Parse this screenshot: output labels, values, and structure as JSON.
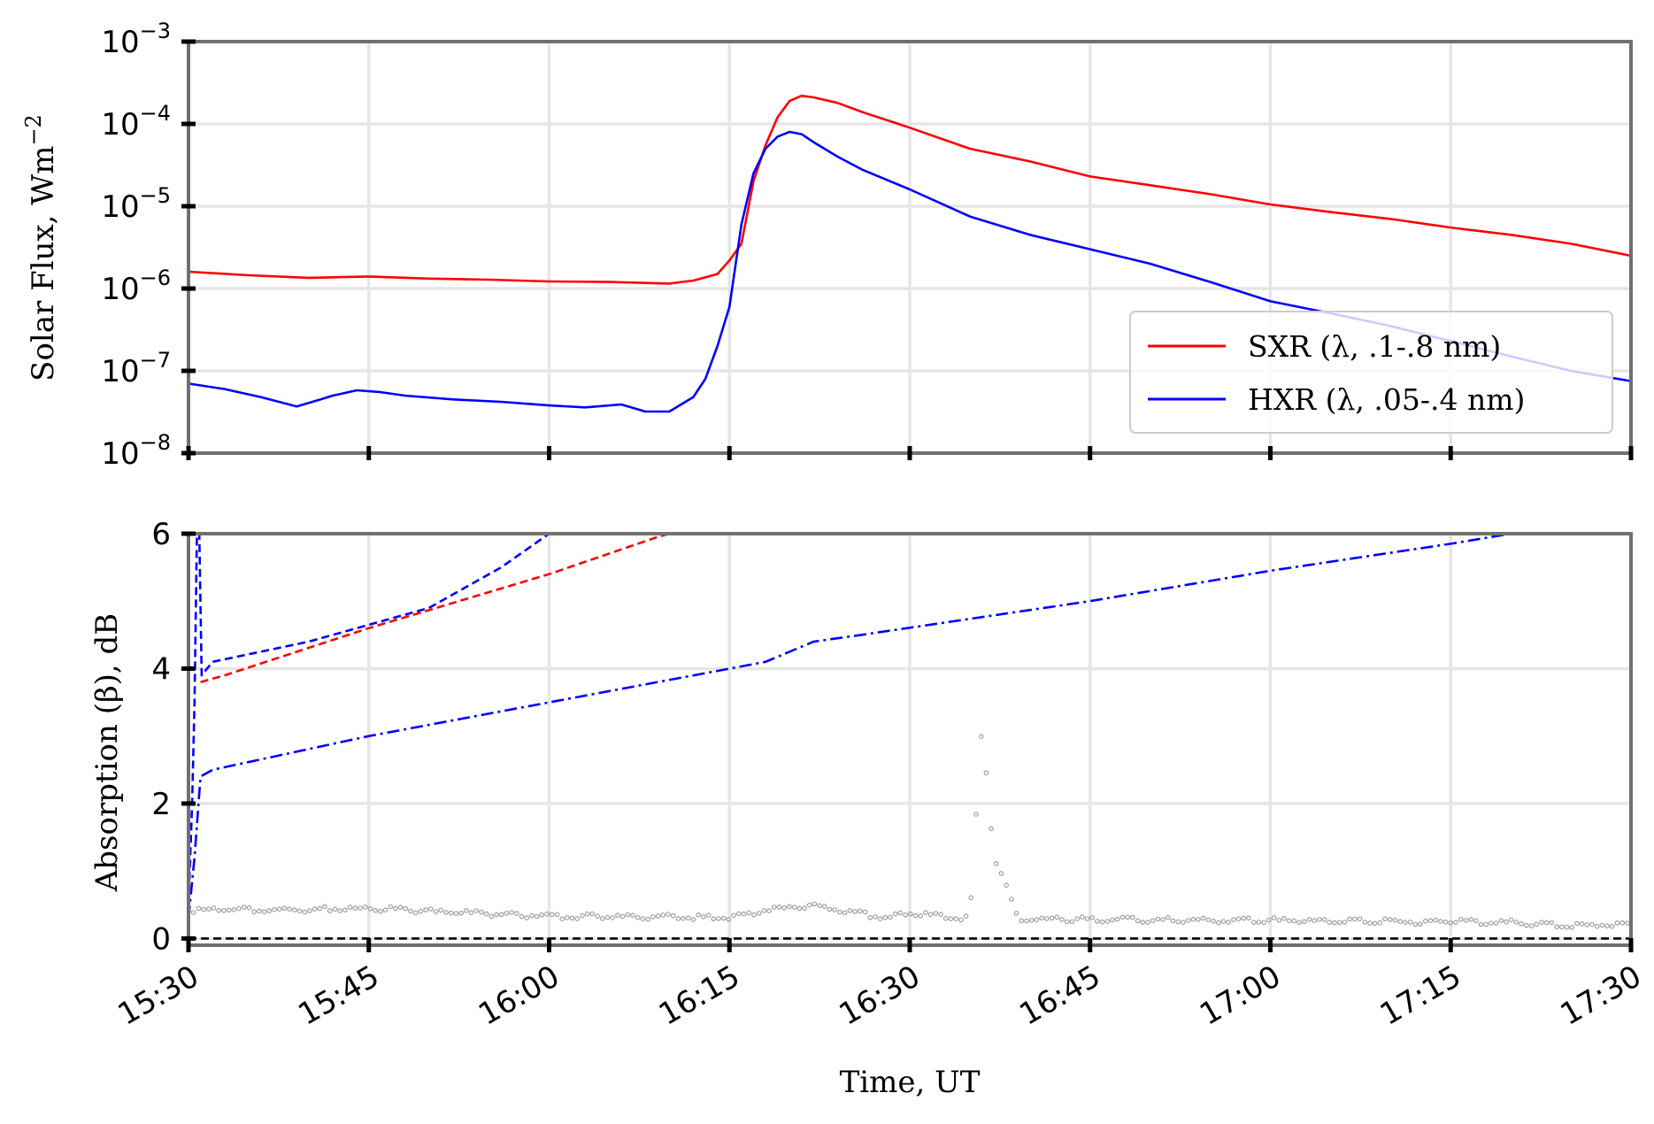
{
  "chart_data": [
    {
      "type": "line",
      "ylabel": "Solar Flux, Wm",
      "ylabel_exp": "−2",
      "yscale": "log",
      "ylim": [
        1e-08,
        0.001
      ],
      "yticks": [
        {
          "base": "10",
          "exp": "−8",
          "value": 1e-08
        },
        {
          "base": "10",
          "exp": "−7",
          "value": 1e-07
        },
        {
          "base": "10",
          "exp": "−6",
          "value": 1e-06
        },
        {
          "base": "10",
          "exp": "−5",
          "value": 1e-05
        },
        {
          "base": "10",
          "exp": "−4",
          "value": 0.0001
        },
        {
          "base": "10",
          "exp": "−3",
          "value": 0.001
        }
      ],
      "xlim": [
        "15:30",
        "17:30"
      ],
      "grid": true,
      "legend_position": "lower-right",
      "series": [
        {
          "name": "SXR (λ, .1-.8 nm)",
          "color": "#ff0000",
          "style": "solid",
          "x": [
            "15:30",
            "15:35",
            "15:40",
            "15:45",
            "15:50",
            "15:55",
            "16:00",
            "16:05",
            "16:10",
            "16:12",
            "16:14",
            "16:15",
            "16:16",
            "16:17",
            "16:18",
            "16:19",
            "16:20",
            "16:21",
            "16:22",
            "16:24",
            "16:26",
            "16:30",
            "16:35",
            "16:40",
            "16:45",
            "16:50",
            "16:55",
            "17:00",
            "17:05",
            "17:10",
            "17:15",
            "17:20",
            "17:25",
            "17:30"
          ],
          "y": [
            1.6e-06,
            1.45e-06,
            1.35e-06,
            1.4e-06,
            1.32e-06,
            1.28e-06,
            1.22e-06,
            1.2e-06,
            1.15e-06,
            1.25e-06,
            1.5e-06,
            2.2e-06,
            3.5e-06,
            2e-05,
            5.5e-05,
            0.00012,
            0.00019,
            0.00022,
            0.00021,
            0.00018,
            0.00014,
            9e-05,
            5e-05,
            3.5e-05,
            2.3e-05,
            1.8e-05,
            1.4e-05,
            1.05e-05,
            8.5e-06,
            7e-06,
            5.5e-06,
            4.5e-06,
            3.5e-06,
            2.5e-06
          ]
        },
        {
          "name": "HXR (λ, .05-.4 nm)",
          "color": "#0000ff",
          "style": "solid",
          "x": [
            "15:30",
            "15:33",
            "15:36",
            "15:39",
            "15:41",
            "15:42",
            "15:44",
            "15:46",
            "15:48",
            "15:52",
            "15:56",
            "16:00",
            "16:03",
            "16:06",
            "16:08",
            "16:10",
            "16:12",
            "16:13",
            "16:14",
            "16:15",
            "16:16",
            "16:17",
            "16:18",
            "16:19",
            "16:20",
            "16:21",
            "16:22",
            "16:24",
            "16:26",
            "16:30",
            "16:35",
            "16:40",
            "16:45",
            "16:50",
            "16:55",
            "17:00",
            "17:05",
            "17:10",
            "17:15",
            "17:20",
            "17:25",
            "17:30"
          ],
          "y": [
            7e-08,
            6e-08,
            4.8e-08,
            3.7e-08,
            4.5e-08,
            5e-08,
            5.8e-08,
            5.5e-08,
            5e-08,
            4.5e-08,
            4.2e-08,
            3.8e-08,
            3.6e-08,
            3.9e-08,
            3.2e-08,
            3.2e-08,
            4.8e-08,
            8e-08,
            2e-07,
            6e-07,
            6e-06,
            2.5e-05,
            5e-05,
            7e-05,
            8e-05,
            7.5e-05,
            6e-05,
            4e-05,
            2.8e-05,
            1.6e-05,
            7.5e-06,
            4.5e-06,
            3e-06,
            2e-06,
            1.2e-06,
            7e-07,
            5e-07,
            3.5e-07,
            2.3e-07,
            1.5e-07,
            1e-07,
            7.5e-08
          ]
        }
      ]
    },
    {
      "type": "line",
      "ylabel": "Absorption (β), dB",
      "xlabel": "Time, UT",
      "ylim": [
        -0.1,
        6
      ],
      "yticks": [
        "0",
        "2",
        "4",
        "6"
      ],
      "xticks": [
        "15:30",
        "15:45",
        "16:00",
        "16:15",
        "16:30",
        "16:45",
        "17:00",
        "17:15",
        "17:30"
      ],
      "xlim": [
        "15:30",
        "17:30"
      ],
      "grid": true,
      "series": [
        {
          "color": "#0000ff",
          "style": "dashed",
          "x": [
            "15:30",
            "15:30.3",
            "15:30.5",
            "15:30.7",
            "15:30.9",
            "15:31.1",
            "15:32",
            "15:40",
            "15:50",
            "15:56",
            "16:00"
          ],
          "y": [
            0.5,
            2.0,
            3.5,
            6.0,
            6.0,
            3.9,
            4.1,
            4.4,
            4.9,
            5.5,
            6.0
          ]
        },
        {
          "color": "#ff0000",
          "style": "dashed",
          "x": [
            "15:31",
            "15:33",
            "15:45",
            "16:00",
            "16:09",
            "16:10"
          ],
          "y": [
            3.8,
            3.9,
            4.6,
            5.4,
            5.95,
            6.0
          ]
        },
        {
          "color": "#0000ff",
          "style": "dashdot",
          "x": [
            "15:30",
            "15:30.5",
            "15:31",
            "15:32",
            "15:45",
            "16:00",
            "16:15",
            "16:18",
            "16:22",
            "16:26",
            "16:45",
            "17:00",
            "17:15",
            "17:20"
          ],
          "y": [
            0.3,
            1.2,
            2.4,
            2.5,
            3.0,
            3.5,
            4.0,
            4.1,
            4.4,
            4.5,
            5.0,
            5.45,
            5.85,
            6.0
          ]
        },
        {
          "color": "#000000",
          "style": "dashed",
          "x": [
            "15:30",
            "17:30"
          ],
          "y": [
            0.0,
            0.0
          ]
        },
        {
          "color": "#9e9e9e",
          "style": "markers",
          "x": [
            "15:30",
            "15:40",
            "15:45",
            "15:50",
            "16:00",
            "16:10",
            "16:15",
            "16:18",
            "16:22",
            "16:25",
            "16:28",
            "16:30",
            "16:35",
            "16:36",
            "16:37",
            "16:38",
            "16:39",
            "16:45",
            "17:00",
            "17:10",
            "17:20",
            "17:25",
            "17:30"
          ],
          "y": [
            0.42,
            0.43,
            0.45,
            0.4,
            0.33,
            0.32,
            0.3,
            0.42,
            0.5,
            0.4,
            0.3,
            0.38,
            0.3,
            3.2,
            1.2,
            0.8,
            0.3,
            0.28,
            0.27,
            0.25,
            0.24,
            0.2,
            0.2
          ]
        }
      ]
    }
  ]
}
